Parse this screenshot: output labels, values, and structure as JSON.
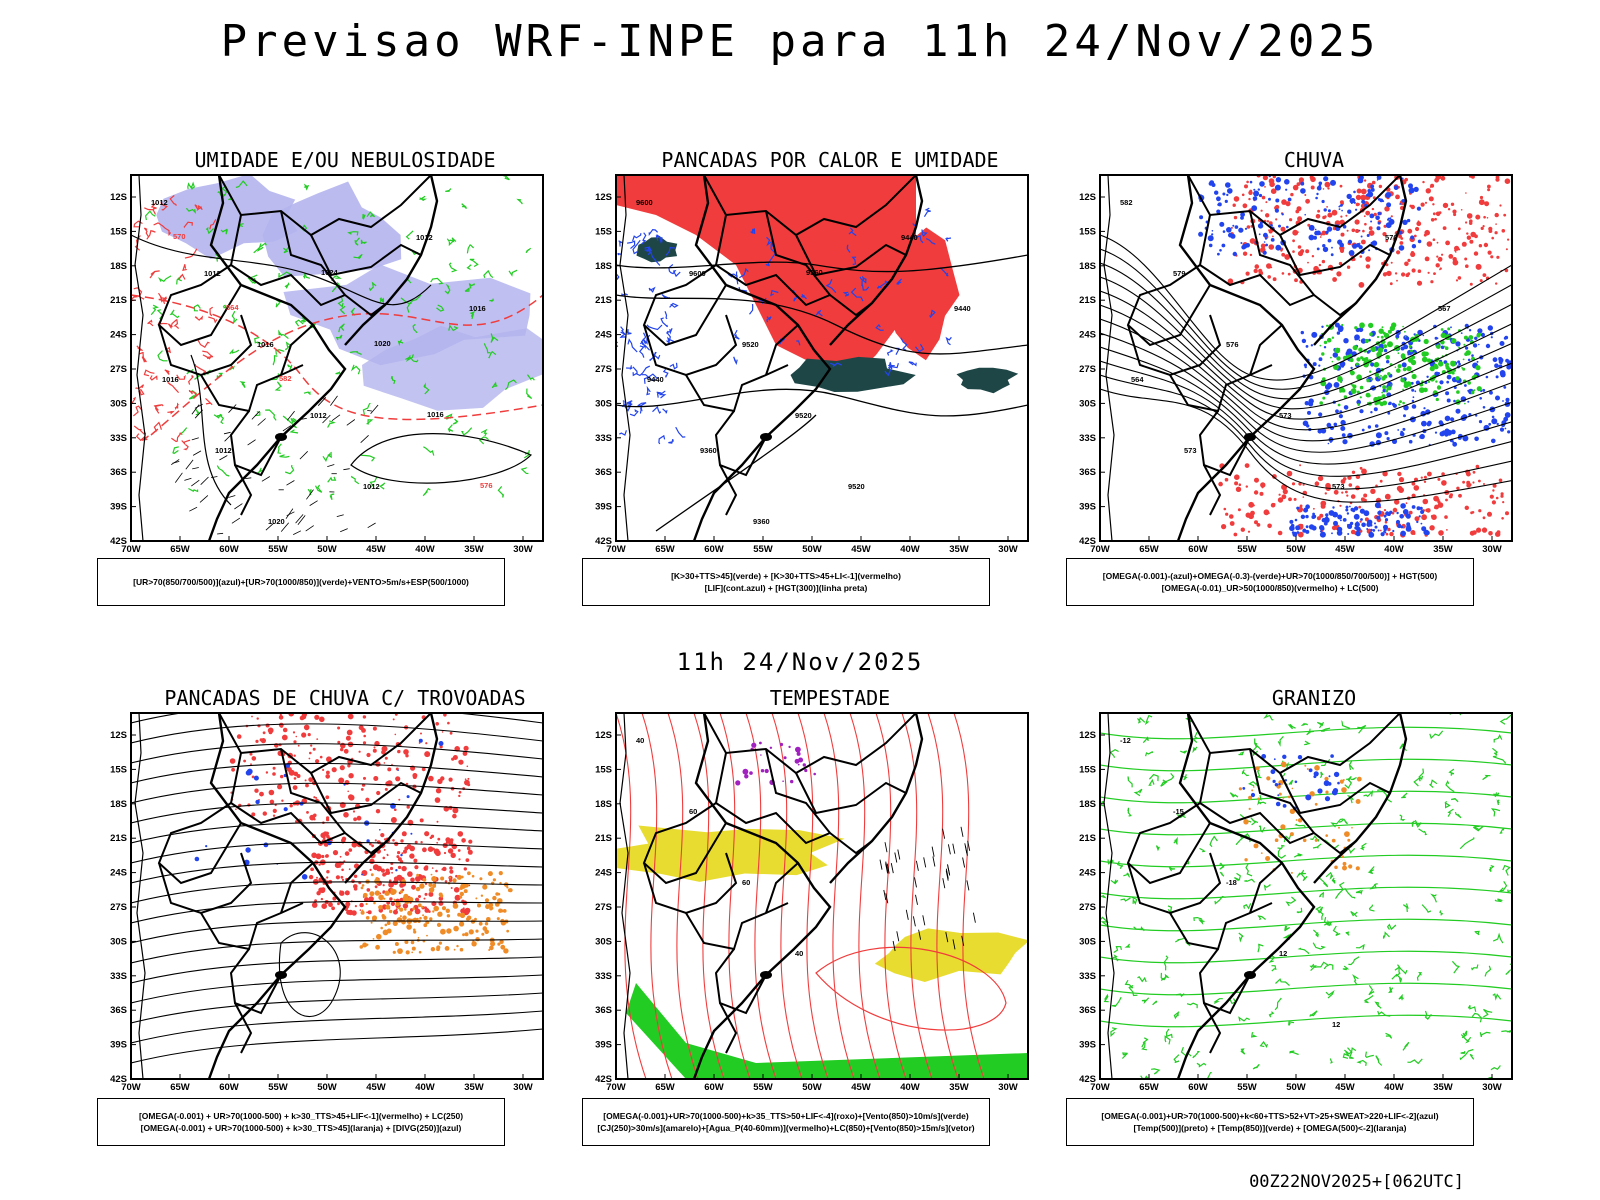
{
  "title": "Previsao WRF-INPE  para 11h 24/Nov/2025",
  "subtitle": "11h 24/Nov/2025",
  "footer": "00Z22NOV2025+[062UTC]",
  "axes": {
    "lat_labels": [
      "12S",
      "15S",
      "18S",
      "21S",
      "24S",
      "27S",
      "30S",
      "33S",
      "36S",
      "39S",
      "42S"
    ],
    "lon_labels": [
      "70W",
      "65W",
      "60W",
      "55W",
      "50W",
      "45W",
      "40W",
      "35W",
      "30W"
    ]
  },
  "colors": {
    "red": "#f03c3c",
    "green": "#22cc22",
    "blue": "#2244ee",
    "lavender": "#b4b4ee",
    "yellow": "#e8dc30",
    "orange": "#f08c28",
    "darkteal": "#1e4646"
  },
  "panels": [
    {
      "id": "umidade",
      "title": "UMIDADE E/OU NEBULOSIDADE",
      "legend": [
        "[UR>70(850/700/500)](azul)+[UR>70(1000/850)](verde)+VENTO>5m/s+ESP(500/1000)"
      ],
      "contour_labels": [
        "1012",
        "1012",
        "1016",
        "1012",
        "1012",
        "1012",
        "1016",
        "1016",
        "1012",
        "1020",
        "1024",
        "1020",
        "1016",
        "576",
        "570",
        "564",
        "582"
      ]
    },
    {
      "id": "pancadas-calor",
      "title": "PANCADAS POR CALOR E UMIDADE",
      "legend": [
        "[K>30+TTS>45](verde) + [K>30+TTS>45+LI<-1](vermelho)",
        "[LIF](cont.azul) + [HGT(300)](linha preta)"
      ],
      "contour_labels": [
        "9600",
        "9600",
        "9520",
        "9520",
        "9520",
        "9440",
        "9440",
        "9440",
        "9360",
        "9360",
        "9360"
      ]
    },
    {
      "id": "chuva",
      "title": "CHUVA",
      "legend": [
        "[OMEGA(-0.001)-(azul)+OMEGA(-0.3)-(verde)+UR>70(1000/850/700/500)] + HGT(500)",
        "[OMEGA(-0.01)_UR>50(1000/850)(vermelho) + LC(500)"
      ],
      "contour_labels": [
        "582",
        "579",
        "576",
        "573",
        "573",
        "570",
        "567",
        "564",
        "573"
      ]
    },
    {
      "id": "trovoadas",
      "title": "PANCADAS DE CHUVA C/ TROVOADAS",
      "legend": [
        "[OMEGA(-0.001) + UR>70(1000-500) + k>30_TTS>45+LIF<-1](vermelho) + LC(250)",
        "[OMEGA(-0.001) + UR>70(1000-500) + k>30_TTS>45](laranja) + [DIVG(250)](azul)"
      ],
      "contour_labels": []
    },
    {
      "id": "tempestade",
      "title": "TEMPESTADE",
      "legend": [
        "[OMEGA(-0.001)+UR>70(1000-500)+k>35_TTS>50+LIF<-4](roxo)+[Vento(850)>10m/s](verde)",
        "[CJ(250)>30m/s](amarelo)+[Agua_P(40-60mm)](vermelho)+LC(850)+[Vento(850)>15m/s](vetor)"
      ],
      "contour_labels": [
        "40",
        "60",
        "60",
        "40"
      ]
    },
    {
      "id": "granizo",
      "title": "GRANIZO",
      "legend": [
        "[OMEGA(-0.001)+UR>70(1000-500)+k<60+TTS>52+VT>25+SWEAT>220+LIF<-2](azul)",
        "[Temp(500)](preto) + [Temp(850)](verde) + [OMEGA(500)<-2](laranja)"
      ],
      "contour_labels": [
        "-12",
        "-15",
        "-18",
        "12",
        "12"
      ]
    }
  ]
}
